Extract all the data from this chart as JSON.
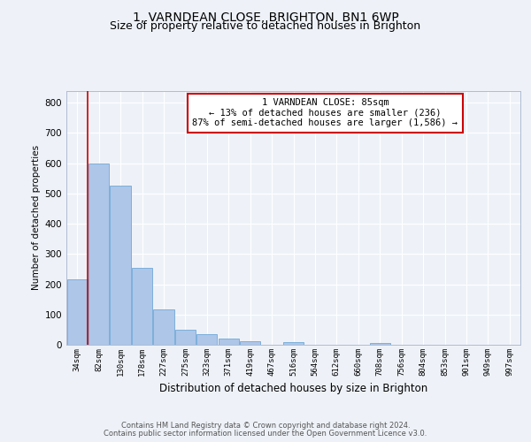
{
  "title1": "1, VARNDEAN CLOSE, BRIGHTON, BN1 6WP",
  "title2": "Size of property relative to detached houses in Brighton",
  "xlabel": "Distribution of detached houses by size in Brighton",
  "ylabel": "Number of detached properties",
  "bin_labels": [
    "34sqm",
    "82sqm",
    "130sqm",
    "178sqm",
    "227sqm",
    "275sqm",
    "323sqm",
    "371sqm",
    "419sqm",
    "467sqm",
    "516sqm",
    "564sqm",
    "612sqm",
    "660sqm",
    "708sqm",
    "756sqm",
    "804sqm",
    "853sqm",
    "901sqm",
    "949sqm",
    "997sqm"
  ],
  "bar_heights": [
    215,
    600,
    527,
    255,
    118,
    50,
    35,
    20,
    13,
    0,
    8,
    0,
    0,
    0,
    7,
    0,
    0,
    0,
    0,
    0,
    0
  ],
  "bar_color": "#aec6e8",
  "bar_edgecolor": "#6fa8d8",
  "vline_x": 0.5,
  "vline_color": "#cc0000",
  "annotation_title": "1 VARNDEAN CLOSE: 85sqm",
  "annotation_line2": "← 13% of detached houses are smaller (236)",
  "annotation_line3": "87% of semi-detached houses are larger (1,586) →",
  "annotation_box_color": "#ffffff",
  "annotation_box_edgecolor": "#cc0000",
  "ylim": [
    0,
    840
  ],
  "yticks": [
    0,
    100,
    200,
    300,
    400,
    500,
    600,
    700,
    800
  ],
  "footer1": "Contains HM Land Registry data © Crown copyright and database right 2024.",
  "footer2": "Contains public sector information licensed under the Open Government Licence v3.0.",
  "bg_color": "#eef2f8",
  "plot_bg_color": "#eef2f8",
  "grid_color": "#ffffff",
  "title_fontsize": 10,
  "subtitle_fontsize": 9
}
